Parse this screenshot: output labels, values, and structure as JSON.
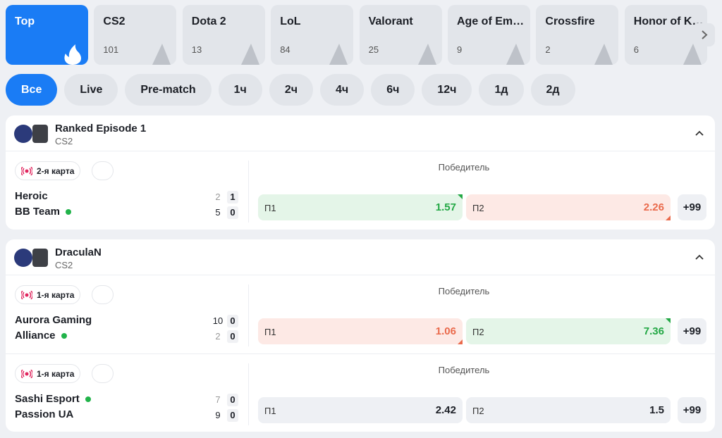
{
  "tabs": [
    {
      "name": "Top"
    },
    {
      "name": "CS2",
      "count": 101
    },
    {
      "name": "Dota 2",
      "count": 13
    },
    {
      "name": "LoL",
      "count": 84
    },
    {
      "name": "Valorant",
      "count": 25
    },
    {
      "name": "Age of Em…",
      "count": 9
    },
    {
      "name": "Crossfire",
      "count": 2
    },
    {
      "name": "Honor of K…",
      "count": 6
    }
  ],
  "filters": [
    "Все",
    "Live",
    "Pre-match",
    "1ч",
    "2ч",
    "4ч",
    "6ч",
    "12ч",
    "1д",
    "2д"
  ],
  "tournaments": [
    {
      "title": "Ranked Episode 1",
      "sport": "CS2",
      "matches": [
        {
          "status": "2-я карта",
          "market": "Победитель",
          "teams": [
            {
              "name": "Heroic",
              "online": false,
              "scores": [
                2,
                1
              ]
            },
            {
              "name": "BB Team",
              "online": true,
              "scores": [
                5,
                0
              ]
            }
          ],
          "odds": [
            {
              "label": "П1",
              "value": "1.57",
              "trend": "up"
            },
            {
              "label": "П2",
              "value": "2.26",
              "trend": "down"
            }
          ],
          "more": "+99"
        }
      ]
    },
    {
      "title": "DraculaN",
      "sport": "CS2",
      "matches": [
        {
          "status": "1-я карта",
          "market": "Победитель",
          "teams": [
            {
              "name": "Aurora Gaming",
              "online": false,
              "scores": [
                10,
                0
              ]
            },
            {
              "name": "Alliance",
              "online": true,
              "scores": [
                2,
                0
              ]
            }
          ],
          "odds": [
            {
              "label": "П1",
              "value": "1.06",
              "trend": "down"
            },
            {
              "label": "П2",
              "value": "7.36",
              "trend": "up"
            }
          ],
          "more": "+99"
        },
        {
          "status": "1-я карта",
          "market": "Победитель",
          "teams": [
            {
              "name": "Sashi Esport",
              "online": true,
              "scores": [
                7,
                0
              ]
            },
            {
              "name": "Passion UA",
              "online": false,
              "scores": [
                9,
                0
              ]
            }
          ],
          "odds": [
            {
              "label": "П1",
              "value": "2.42",
              "trend": null
            },
            {
              "label": "П2",
              "value": "1.5",
              "trend": null
            }
          ],
          "more": "+99"
        }
      ]
    }
  ]
}
